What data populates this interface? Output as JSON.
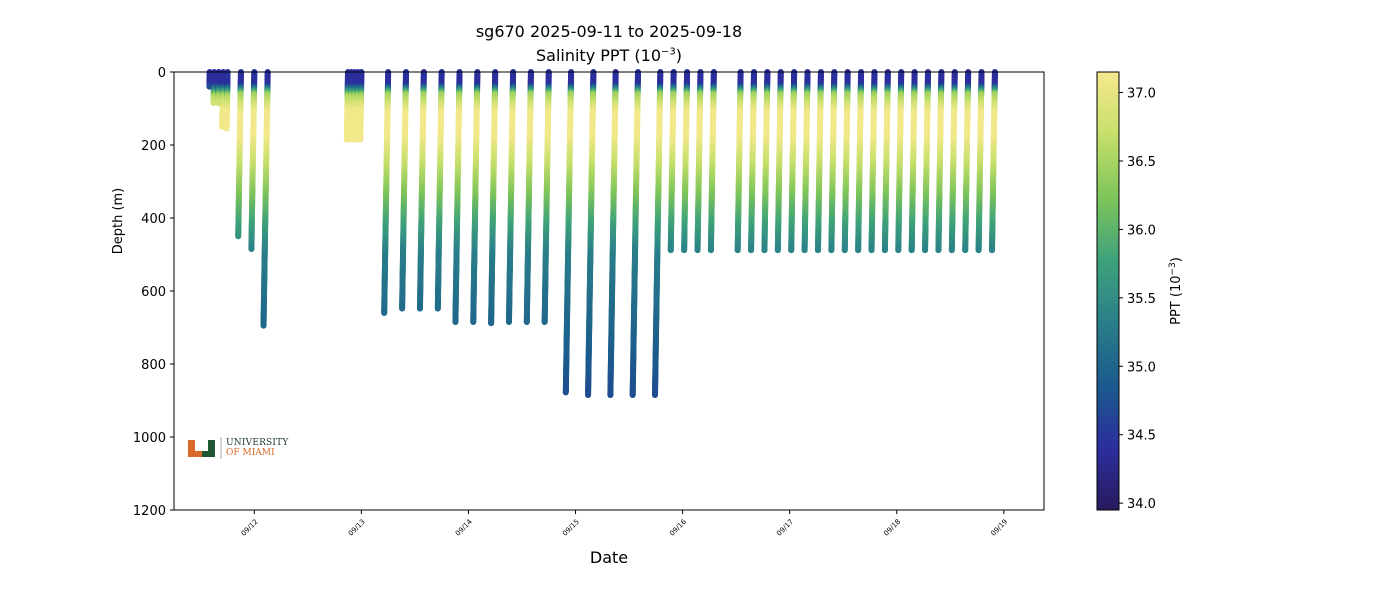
{
  "header": {
    "title_line1": "sg670 2025-09-11 to 2025-09-18",
    "title_line2_prefix": "Salinity PPT (10",
    "title_line2_sup": "−3",
    "title_line2_suffix": ")"
  },
  "logo": {
    "line1": "UNIVERSITY",
    "line2": "OF MIAMI",
    "colors": {
      "orange": "#d9692b",
      "green": "#1e5631"
    }
  },
  "chart_data": {
    "type": "scatter",
    "xlabel": "Date",
    "ylabel": "Depth (m)",
    "y_inverted": true,
    "ylim": [
      1200,
      0
    ],
    "xlim": [
      "2025-09-11T06:00",
      "2025-09-19T09:00"
    ],
    "x_ticks": [
      "09/12",
      "09/13",
      "09/14",
      "09/15",
      "09/16",
      "09/17",
      "09/18",
      "09/19"
    ],
    "y_ticks": [
      0,
      200,
      400,
      600,
      800,
      1000,
      1200
    ],
    "colorbar": {
      "label_prefix": "PPT (10",
      "label_sup": "−3",
      "label_suffix": ")",
      "range": [
        33.95,
        37.15
      ],
      "ticks": [
        "34.0",
        "34.5",
        "35.0",
        "35.5",
        "36.0",
        "36.5",
        "37.0"
      ],
      "colormap": "haline",
      "stops": [
        "#2a1a5e",
        "#2b2f9e",
        "#1b5a8c",
        "#2a7f8a",
        "#3ea27a",
        "#7fc55a",
        "#c6df6a",
        "#f6e98e"
      ]
    },
    "dives": [
      {
        "time": "2025-09-11T14:00",
        "max_depth": 40,
        "type": "shallow"
      },
      {
        "time": "2025-09-11T15:00",
        "max_depth": 85,
        "type": "shallow"
      },
      {
        "time": "2025-09-11T16:00",
        "max_depth": 85,
        "type": "shallow"
      },
      {
        "time": "2025-09-11T17:00",
        "max_depth": 150,
        "type": "shallow"
      },
      {
        "time": "2025-09-11T18:00",
        "max_depth": 155,
        "type": "shallow"
      },
      {
        "time": "2025-09-11T21:00",
        "max_depth": 450,
        "type": "deep"
      },
      {
        "time": "2025-09-12T00:00",
        "max_depth": 485,
        "type": "deep"
      },
      {
        "time": "2025-09-12T03:00",
        "max_depth": 695,
        "type": "deep"
      },
      {
        "time": "2025-09-12T21:00",
        "max_depth": 185,
        "type": "shallow"
      },
      {
        "time": "2025-09-12T21:45",
        "max_depth": 185,
        "type": "shallow"
      },
      {
        "time": "2025-09-12T22:30",
        "max_depth": 185,
        "type": "shallow"
      },
      {
        "time": "2025-09-12T23:15",
        "max_depth": 185,
        "type": "shallow"
      },
      {
        "time": "2025-09-13T00:00",
        "max_depth": 185,
        "type": "shallow"
      },
      {
        "time": "2025-09-13T06:00",
        "max_depth": 660,
        "type": "deep"
      },
      {
        "time": "2025-09-13T10:00",
        "max_depth": 648,
        "type": "deep"
      },
      {
        "time": "2025-09-13T14:00",
        "max_depth": 648,
        "type": "deep"
      },
      {
        "time": "2025-09-13T18:00",
        "max_depth": 648,
        "type": "deep"
      },
      {
        "time": "2025-09-13T22:00",
        "max_depth": 685,
        "type": "deep"
      },
      {
        "time": "2025-09-14T02:00",
        "max_depth": 685,
        "type": "deep"
      },
      {
        "time": "2025-09-14T06:00",
        "max_depth": 688,
        "type": "deep"
      },
      {
        "time": "2025-09-14T10:00",
        "max_depth": 685,
        "type": "deep"
      },
      {
        "time": "2025-09-14T14:00",
        "max_depth": 685,
        "type": "deep"
      },
      {
        "time": "2025-09-14T18:00",
        "max_depth": 685,
        "type": "deep"
      },
      {
        "time": "2025-09-14T23:00",
        "max_depth": 878,
        "type": "deep"
      },
      {
        "time": "2025-09-15T04:00",
        "max_depth": 885,
        "type": "deep"
      },
      {
        "time": "2025-09-15T09:00",
        "max_depth": 885,
        "type": "deep"
      },
      {
        "time": "2025-09-15T14:00",
        "max_depth": 885,
        "type": "deep"
      },
      {
        "time": "2025-09-15T19:00",
        "max_depth": 885,
        "type": "deep"
      },
      {
        "time": "2025-09-15T22:00",
        "max_depth": 488,
        "type": "deep"
      },
      {
        "time": "2025-09-16T01:00",
        "max_depth": 488,
        "type": "deep"
      },
      {
        "time": "2025-09-16T04:00",
        "max_depth": 488,
        "type": "deep"
      },
      {
        "time": "2025-09-16T07:00",
        "max_depth": 488,
        "type": "deep"
      },
      {
        "time": "2025-09-16T13:00",
        "max_depth": 488,
        "type": "deep"
      },
      {
        "time": "2025-09-16T16:00",
        "max_depth": 488,
        "type": "deep"
      },
      {
        "time": "2025-09-16T19:00",
        "max_depth": 488,
        "type": "deep"
      },
      {
        "time": "2025-09-16T22:00",
        "max_depth": 488,
        "type": "deep"
      },
      {
        "time": "2025-09-17T01:00",
        "max_depth": 488,
        "type": "deep"
      },
      {
        "time": "2025-09-17T04:00",
        "max_depth": 488,
        "type": "deep"
      },
      {
        "time": "2025-09-17T07:00",
        "max_depth": 488,
        "type": "deep"
      },
      {
        "time": "2025-09-17T10:00",
        "max_depth": 488,
        "type": "deep"
      },
      {
        "time": "2025-09-17T13:00",
        "max_depth": 488,
        "type": "deep"
      },
      {
        "time": "2025-09-17T16:00",
        "max_depth": 488,
        "type": "deep"
      },
      {
        "time": "2025-09-17T19:00",
        "max_depth": 488,
        "type": "deep"
      },
      {
        "time": "2025-09-17T22:00",
        "max_depth": 488,
        "type": "deep"
      },
      {
        "time": "2025-09-18T01:00",
        "max_depth": 488,
        "type": "deep"
      },
      {
        "time": "2025-09-18T04:00",
        "max_depth": 488,
        "type": "deep"
      },
      {
        "time": "2025-09-18T07:00",
        "max_depth": 488,
        "type": "deep"
      },
      {
        "time": "2025-09-18T10:00",
        "max_depth": 488,
        "type": "deep"
      },
      {
        "time": "2025-09-18T13:00",
        "max_depth": 488,
        "type": "deep"
      },
      {
        "time": "2025-09-18T16:00",
        "max_depth": 488,
        "type": "deep"
      },
      {
        "time": "2025-09-18T19:00",
        "max_depth": 488,
        "type": "deep"
      },
      {
        "time": "2025-09-18T22:00",
        "max_depth": 488,
        "type": "deep"
      }
    ]
  }
}
